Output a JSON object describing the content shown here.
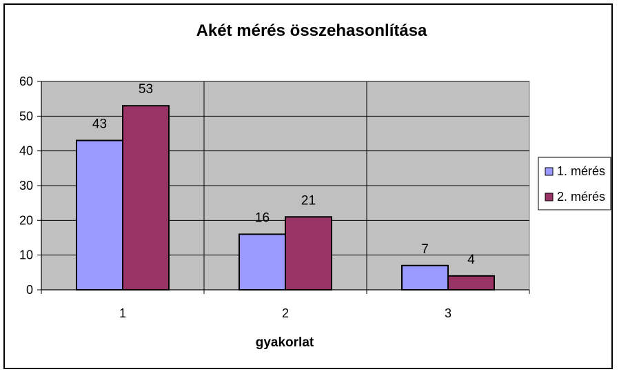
{
  "chart_data": {
    "type": "bar",
    "title": "Akét mérés összehasonlítása",
    "xlabel": "gyakorlat",
    "ylabel": "",
    "categories": [
      "1",
      "2",
      "3"
    ],
    "series": [
      {
        "name": "1. mérés",
        "values": [
          43,
          16,
          7
        ],
        "color": "#9999ff"
      },
      {
        "name": "2. mérés",
        "values": [
          53,
          21,
          4
        ],
        "color": "#993366"
      }
    ],
    "ylim": [
      0,
      60
    ],
    "yticks": [
      0,
      10,
      20,
      30,
      40,
      50,
      60
    ],
    "grid": true,
    "plot_background": "#c0c0c0",
    "legend_position": "right"
  }
}
